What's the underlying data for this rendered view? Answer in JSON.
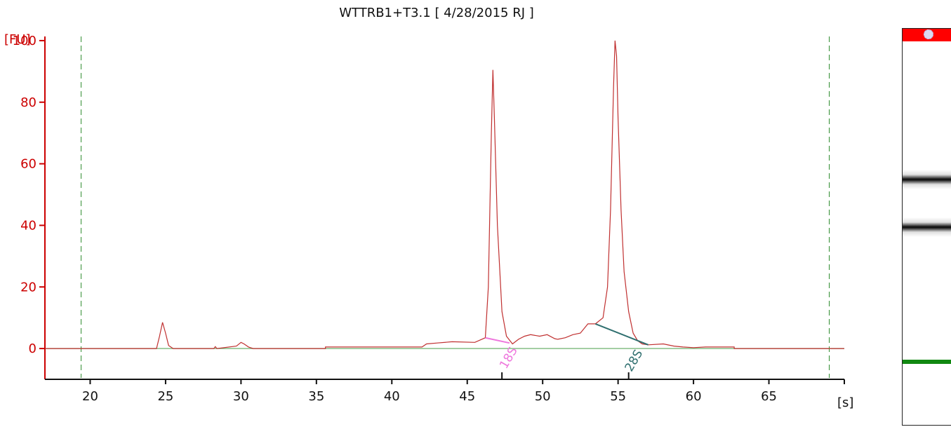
{
  "chart_data": {
    "type": "line",
    "title": "WTTRB1+T3.1  [ 4/28/2015 RJ ]",
    "ylabel": "[FU]",
    "xlabel": "[s]",
    "xlim": [
      17,
      70
    ],
    "ylim": [
      -10,
      110
    ],
    "x_ticks": [
      20,
      25,
      30,
      35,
      40,
      45,
      50,
      55,
      60,
      65
    ],
    "y_ticks": [
      0,
      20,
      40,
      60,
      80,
      100
    ],
    "x_tick_labels": [
      "20",
      "25",
      "30",
      "35",
      "40",
      "45",
      "50",
      "55",
      "60",
      "65"
    ],
    "y_tick_labels": [
      "0",
      "20",
      "40",
      "60",
      "80",
      "100"
    ],
    "markers": [
      19.4,
      69.0
    ],
    "baseline": 0,
    "series": [
      {
        "x": [
          17.0,
          24.4,
          24.6,
          24.8,
          25.0,
          25.2,
          25.5,
          28.2,
          28.3,
          28.4,
          29.7,
          30.0,
          30.2,
          30.5,
          30.8,
          35.6,
          35.6,
          42.0,
          42.3,
          43.0,
          44.0,
          45.5,
          46.2,
          46.4,
          46.6,
          46.7,
          46.8,
          47.0,
          47.3,
          47.6,
          48.0,
          48.4,
          48.8,
          49.2,
          49.8,
          50.3,
          50.8,
          51.0,
          51.5,
          52.0,
          52.5,
          53.0,
          53.5,
          54.0,
          54.3,
          54.5,
          54.7,
          54.8,
          54.9,
          55.0,
          55.2,
          55.4,
          55.7,
          56.0,
          56.3,
          56.6,
          57.0,
          58.0,
          58.7,
          59.3,
          60.0,
          60.8,
          61.0,
          62.7,
          62.7,
          70.0
        ],
        "y": [
          0,
          0,
          4,
          8.5,
          5,
          1,
          0,
          0,
          0.6,
          0,
          0.8,
          2,
          1.5,
          0.5,
          0,
          0,
          0.5,
          0.5,
          1.5,
          1.8,
          2.2,
          2,
          3.5,
          20,
          70,
          90.5,
          75,
          40,
          12,
          4,
          1.5,
          3,
          4,
          4.5,
          4,
          4.5,
          3.2,
          3,
          3.5,
          4.5,
          5,
          8,
          8,
          10,
          20,
          45,
          85,
          100,
          95,
          75,
          45,
          25,
          12,
          5,
          2.5,
          1.5,
          1.2,
          1.5,
          0.8,
          0.5,
          0.3,
          0.5,
          0.5,
          0.5,
          0,
          0
        ]
      }
    ],
    "peaks": [
      {
        "label": "18S",
        "x": 47.3
      },
      {
        "label": "28S",
        "x": 55.7
      }
    ],
    "colors": {
      "axis": "#cc0000",
      "trace": "#c03030",
      "baseline": "#7ab87a",
      "marker": "#2e8b2e",
      "peak_18S": "#ee77dd",
      "peak_28S": "#2f6f6f"
    }
  },
  "gel": {
    "colors": {
      "header": "#ff0000",
      "marker_band": "#118811",
      "band": "#111111"
    },
    "bands": [
      {
        "name": "28S",
        "level": 0.38
      },
      {
        "name": "18S",
        "level": 0.5
      },
      {
        "name": "lower-marker",
        "level": 0.84
      }
    ]
  }
}
